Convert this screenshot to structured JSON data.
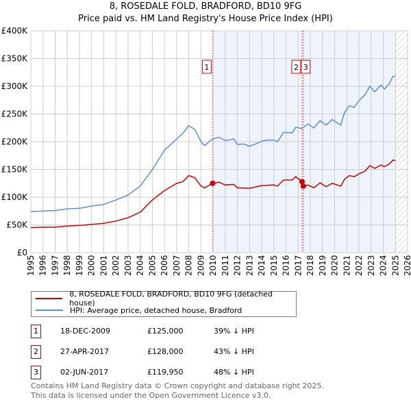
{
  "chart_data": {
    "type": "line",
    "title": "8, ROSEDALE FOLD, BRADFORD, BD10 9FG",
    "subtitle": "Price paid vs. HM Land Registry's House Price Index (HPI)",
    "xlim": [
      1995,
      2026
    ],
    "ylim": [
      0,
      400000
    ],
    "x_ticks": [
      "1995",
      "1996",
      "1997",
      "1998",
      "1999",
      "2000",
      "2001",
      "2002",
      "2003",
      "2004",
      "2005",
      "2006",
      "2007",
      "2008",
      "2009",
      "2010",
      "2011",
      "2012",
      "2013",
      "2014",
      "2015",
      "2016",
      "2017",
      "2018",
      "2019",
      "2020",
      "2021",
      "2022",
      "2023",
      "2024",
      "2025",
      "2026"
    ],
    "y_ticks": [
      {
        "v": 0,
        "l": "£0"
      },
      {
        "v": 50000,
        "l": "£50K"
      },
      {
        "v": 100000,
        "l": "£100K"
      },
      {
        "v": 150000,
        "l": "£150K"
      },
      {
        "v": 200000,
        "l": "£200K"
      },
      {
        "v": 250000,
        "l": "£250K"
      },
      {
        "v": 300000,
        "l": "£300K"
      },
      {
        "v": 350000,
        "l": "£350K"
      },
      {
        "v": 400000,
        "l": "£400K"
      }
    ],
    "grid": true,
    "shaded_from": 2009.96,
    "data_end": 2025.0,
    "series": [
      {
        "name": "8, ROSEDALE FOLD, BRADFORD, BD10 9FG (detached house)",
        "color": "#cc0000",
        "x": [
          1995,
          1996,
          1997,
          1998,
          1999,
          2000,
          2001,
          2002,
          2003,
          2004,
          2005,
          2006,
          2007,
          2007.5,
          2008,
          2008.5,
          2009,
          2009.3,
          2009.96,
          2010.5,
          2011,
          2011.7,
          2012,
          2013,
          2014,
          2015,
          2015.3,
          2015.8,
          2016.5,
          2016.8,
          2017.32,
          2017.42,
          2017.8,
          2018.3,
          2018.8,
          2019.3,
          2019.8,
          2020.5,
          2020.8,
          2021.2,
          2021.6,
          2022,
          2022.5,
          2022.9,
          2023.3,
          2023.8,
          2024.1,
          2024.5,
          2024.8,
          2025
        ],
        "y": [
          45,
          46,
          46,
          48,
          49,
          51,
          53,
          57,
          63,
          73,
          95,
          112,
          125,
          128,
          139,
          135,
          120,
          117,
          125,
          127,
          122,
          123,
          117,
          116,
          121,
          122,
          120,
          131,
          131,
          137,
          128,
          119.95,
          122,
          117,
          126,
          119,
          125,
          120,
          132,
          139,
          137,
          142,
          147,
          157,
          152,
          158,
          155,
          160,
          167,
          166
        ]
      },
      {
        "name": "HPI: Average price, detached house, Bradford",
        "color": "#5b8fd4",
        "x": [
          1995,
          1996,
          1997,
          1998,
          1999,
          2000,
          2001,
          2002,
          2003,
          2004,
          2005,
          2006,
          2007,
          2007.5,
          2008,
          2008.5,
          2009,
          2009.3,
          2009.96,
          2010.5,
          2011,
          2011.7,
          2012,
          2012.5,
          2013,
          2013.5,
          2014,
          2014.5,
          2015,
          2015.3,
          2015.8,
          2016.5,
          2016.8,
          2017.3,
          2017.8,
          2018.3,
          2018.8,
          2019.3,
          2019.8,
          2020.5,
          2020.8,
          2021.2,
          2021.6,
          2022,
          2022.5,
          2022.9,
          2023.3,
          2023.8,
          2024.1,
          2024.5,
          2024.8,
          2025
        ],
        "y": [
          74,
          75,
          76,
          79,
          80,
          84,
          87,
          95,
          104,
          120,
          150,
          185,
          205,
          215,
          229,
          222,
          200,
          193,
          205,
          208,
          202,
          205,
          195,
          196,
          192,
          196,
          201,
          203,
          203,
          200,
          217,
          216,
          226,
          224,
          232,
          225,
          238,
          230,
          240,
          230,
          252,
          265,
          262,
          274,
          285,
          300,
          290,
          302,
          295,
          305,
          318,
          318
        ]
      }
    ],
    "sales": [
      {
        "n": "1",
        "date": "18-DEC-2009",
        "price": "£125,000",
        "hpi": "39% ↓ HPI",
        "x": 2009.96,
        "y": 125
      },
      {
        "n": "2",
        "date": "27-APR-2017",
        "price": "£128,000",
        "hpi": "43% ↓ HPI",
        "x": 2017.32,
        "y": 128
      },
      {
        "n": "3",
        "date": "02-JUN-2017",
        "price": "£119,950",
        "hpi": "48% ↓ HPI",
        "x": 2017.42,
        "y": 119.95
      }
    ]
  },
  "footer": {
    "line1": "Contains HM Land Registry data © Crown copyright and database right 2025.",
    "line2": "This data is licensed under the Open Government Licence v3.0."
  }
}
